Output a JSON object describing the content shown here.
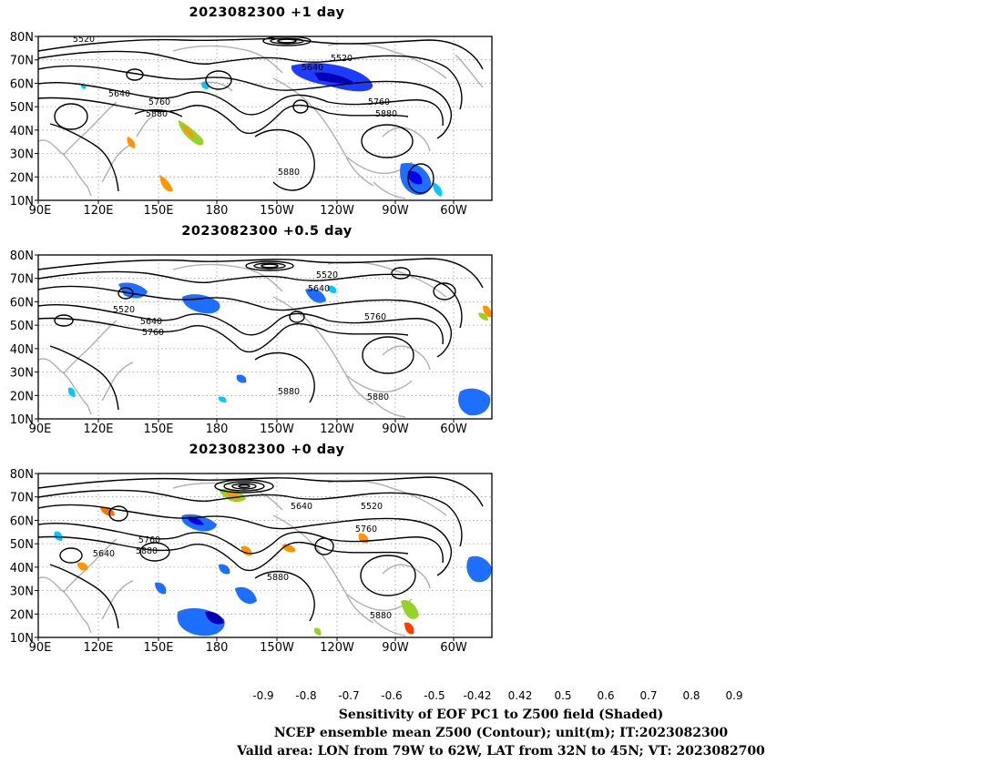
{
  "panels": [
    {
      "title": "2023082300 +1 day",
      "contour_labels": [
        "5520",
        "5640",
        "5760",
        "5880",
        "5520",
        "5640",
        "5760",
        "5880",
        "5880"
      ]
    },
    {
      "title": "2023082300 +0.5 day",
      "contour_labels": [
        "5520",
        "5640",
        "5760",
        "5880",
        "5520",
        "5640",
        "5760",
        "5880",
        "5880"
      ]
    },
    {
      "title": "2023082300 +0 day",
      "contour_labels": [
        "5640",
        "5760",
        "5880",
        "5640",
        "5520",
        "5760",
        "5880",
        "5880"
      ]
    }
  ],
  "axes": {
    "lat_labels": [
      "80N",
      "70N",
      "60N",
      "50N",
      "40N",
      "30N",
      "20N",
      "10N"
    ],
    "lon_labels": [
      "90E",
      "120E",
      "150E",
      "180",
      "150W",
      "120W",
      "90W",
      "60W"
    ]
  },
  "colorbar": {
    "labels": [
      "-0.9",
      "-0.8",
      "-0.7",
      "-0.6",
      "-0.5",
      "-0.42",
      "0.42",
      "0.5",
      "0.6",
      "0.7",
      "0.8",
      "0.9"
    ],
    "colors": [
      "#0000b4",
      "#0000f0",
      "#1e3cff",
      "#1e6eff",
      "#00c8ff",
      "#ffffff",
      "#96d228",
      "#ff9600",
      "#ff7300",
      "#ff3c00",
      "#ff0000"
    ],
    "under_color": "#c800a0",
    "over_color": "#ff9bd2"
  },
  "caption": {
    "line1": "Sensitivity of EOF PC1 to Z500 field (Shaded)",
    "line2": "NCEP ensemble mean Z500 (Contour); unit(m); IT:2023082300",
    "line3": "Valid area: LON from 79W to 62W, LAT from 32N to 45N; VT: 2023082700"
  }
}
